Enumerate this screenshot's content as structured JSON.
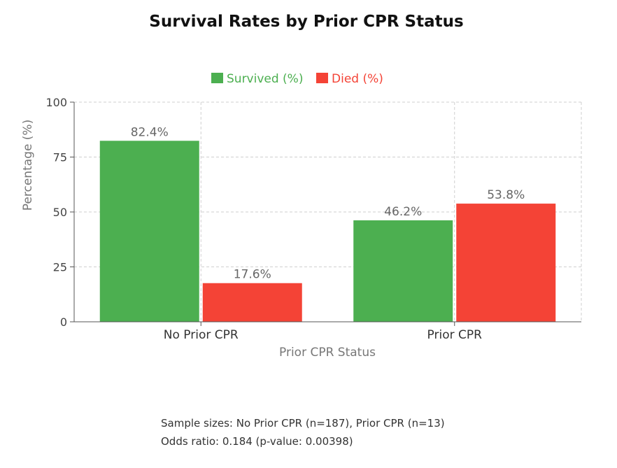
{
  "chart_data": {
    "type": "bar",
    "title": "Survival Rates by Prior CPR Status",
    "xlabel": "Prior CPR Status",
    "ylabel": "Percentage (%)",
    "categories": [
      "No Prior CPR",
      "Prior CPR"
    ],
    "series": [
      {
        "name": "Survived (%)",
        "values": [
          82.4,
          46.2
        ],
        "color": "#4caf50",
        "labels": [
          "82.4%",
          "46.2%"
        ]
      },
      {
        "name": "Died (%)",
        "values": [
          17.6,
          53.8
        ],
        "color": "#f44336",
        "labels": [
          "17.6%",
          "53.8%"
        ]
      }
    ],
    "ylim": [
      0,
      100
    ],
    "yticks": [
      0,
      25,
      50,
      75,
      100
    ],
    "grid": true,
    "legend_position": "top-center"
  },
  "footnotes": {
    "sample_sizes": "Sample sizes: No Prior CPR (n=187), Prior CPR (n=13)",
    "odds_ratio": "Odds ratio: 0.184 (p-value: 0.00398)"
  }
}
